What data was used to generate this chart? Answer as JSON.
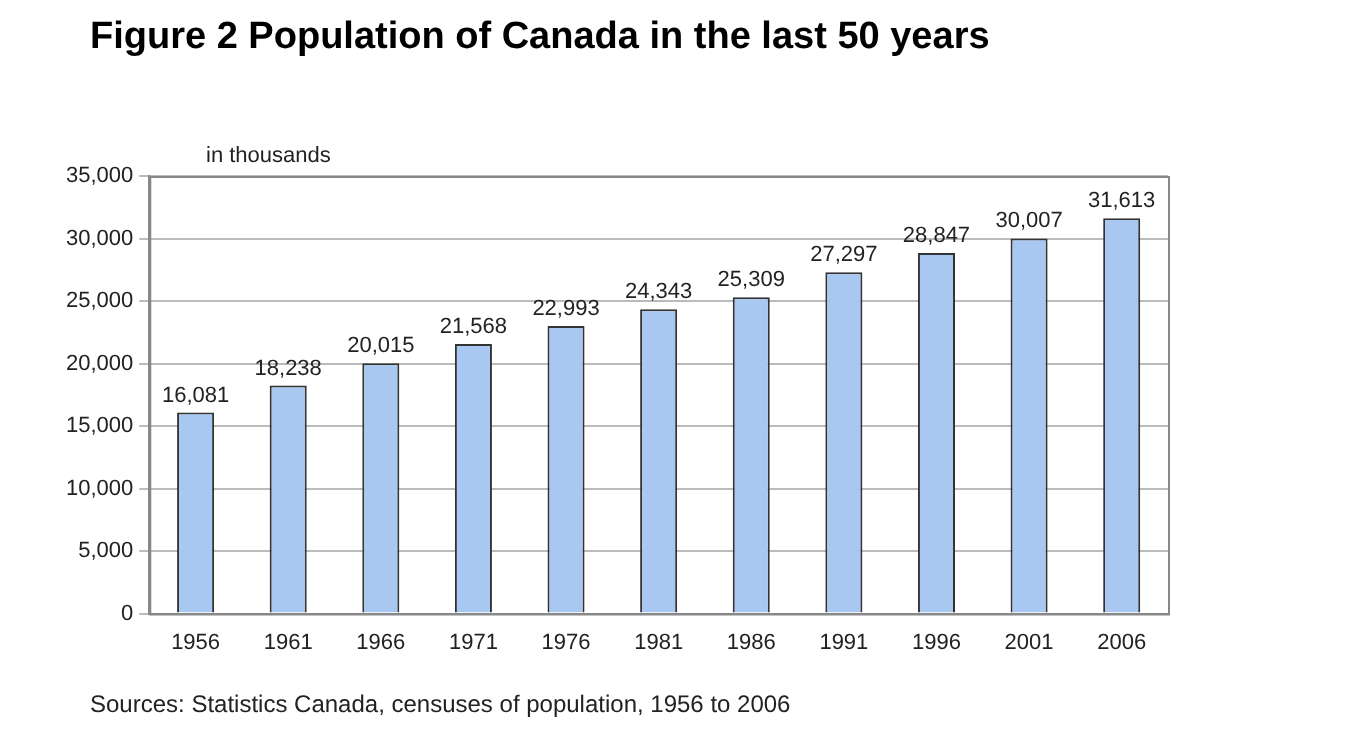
{
  "chart_data": {
    "type": "bar",
    "title": "Figure 2 Population of Canada in the last 50 years",
    "ylabel": "in thousands",
    "categories": [
      "1956",
      "1961",
      "1966",
      "1971",
      "1976",
      "1981",
      "1986",
      "1991",
      "1996",
      "2001",
      "2006"
    ],
    "values": [
      16081,
      18238,
      20015,
      21568,
      22993,
      24343,
      25309,
      27297,
      28847,
      30007,
      31613
    ],
    "color": "#a8c8f2",
    "ylim": [
      0,
      35000
    ],
    "yticks": [
      0,
      {
        "value": 5000,
        "label": "5,000"
      },
      {
        "value": 10000,
        "label": "10,000"
      },
      {
        "value": 15000,
        "label": "15,000"
      },
      {
        "value": 20000,
        "label": "20,000"
      },
      {
        "value": 25000,
        "label": "25,000"
      },
      {
        "value": 30000,
        "label": "30,000"
      },
      {
        "value": 35000,
        "label": "35,000"
      }
    ],
    "value_labels": [
      "16,081",
      "18,238",
      "20,015",
      "21,568",
      "22,993",
      "24,343",
      "25,309",
      "27,297",
      "28,847",
      "30,007",
      "31,613"
    ],
    "grid": "y",
    "legend": false,
    "annotations": [
      "Sources: Statistics Canada, censuses of population, 1956 to 2006"
    ]
  }
}
